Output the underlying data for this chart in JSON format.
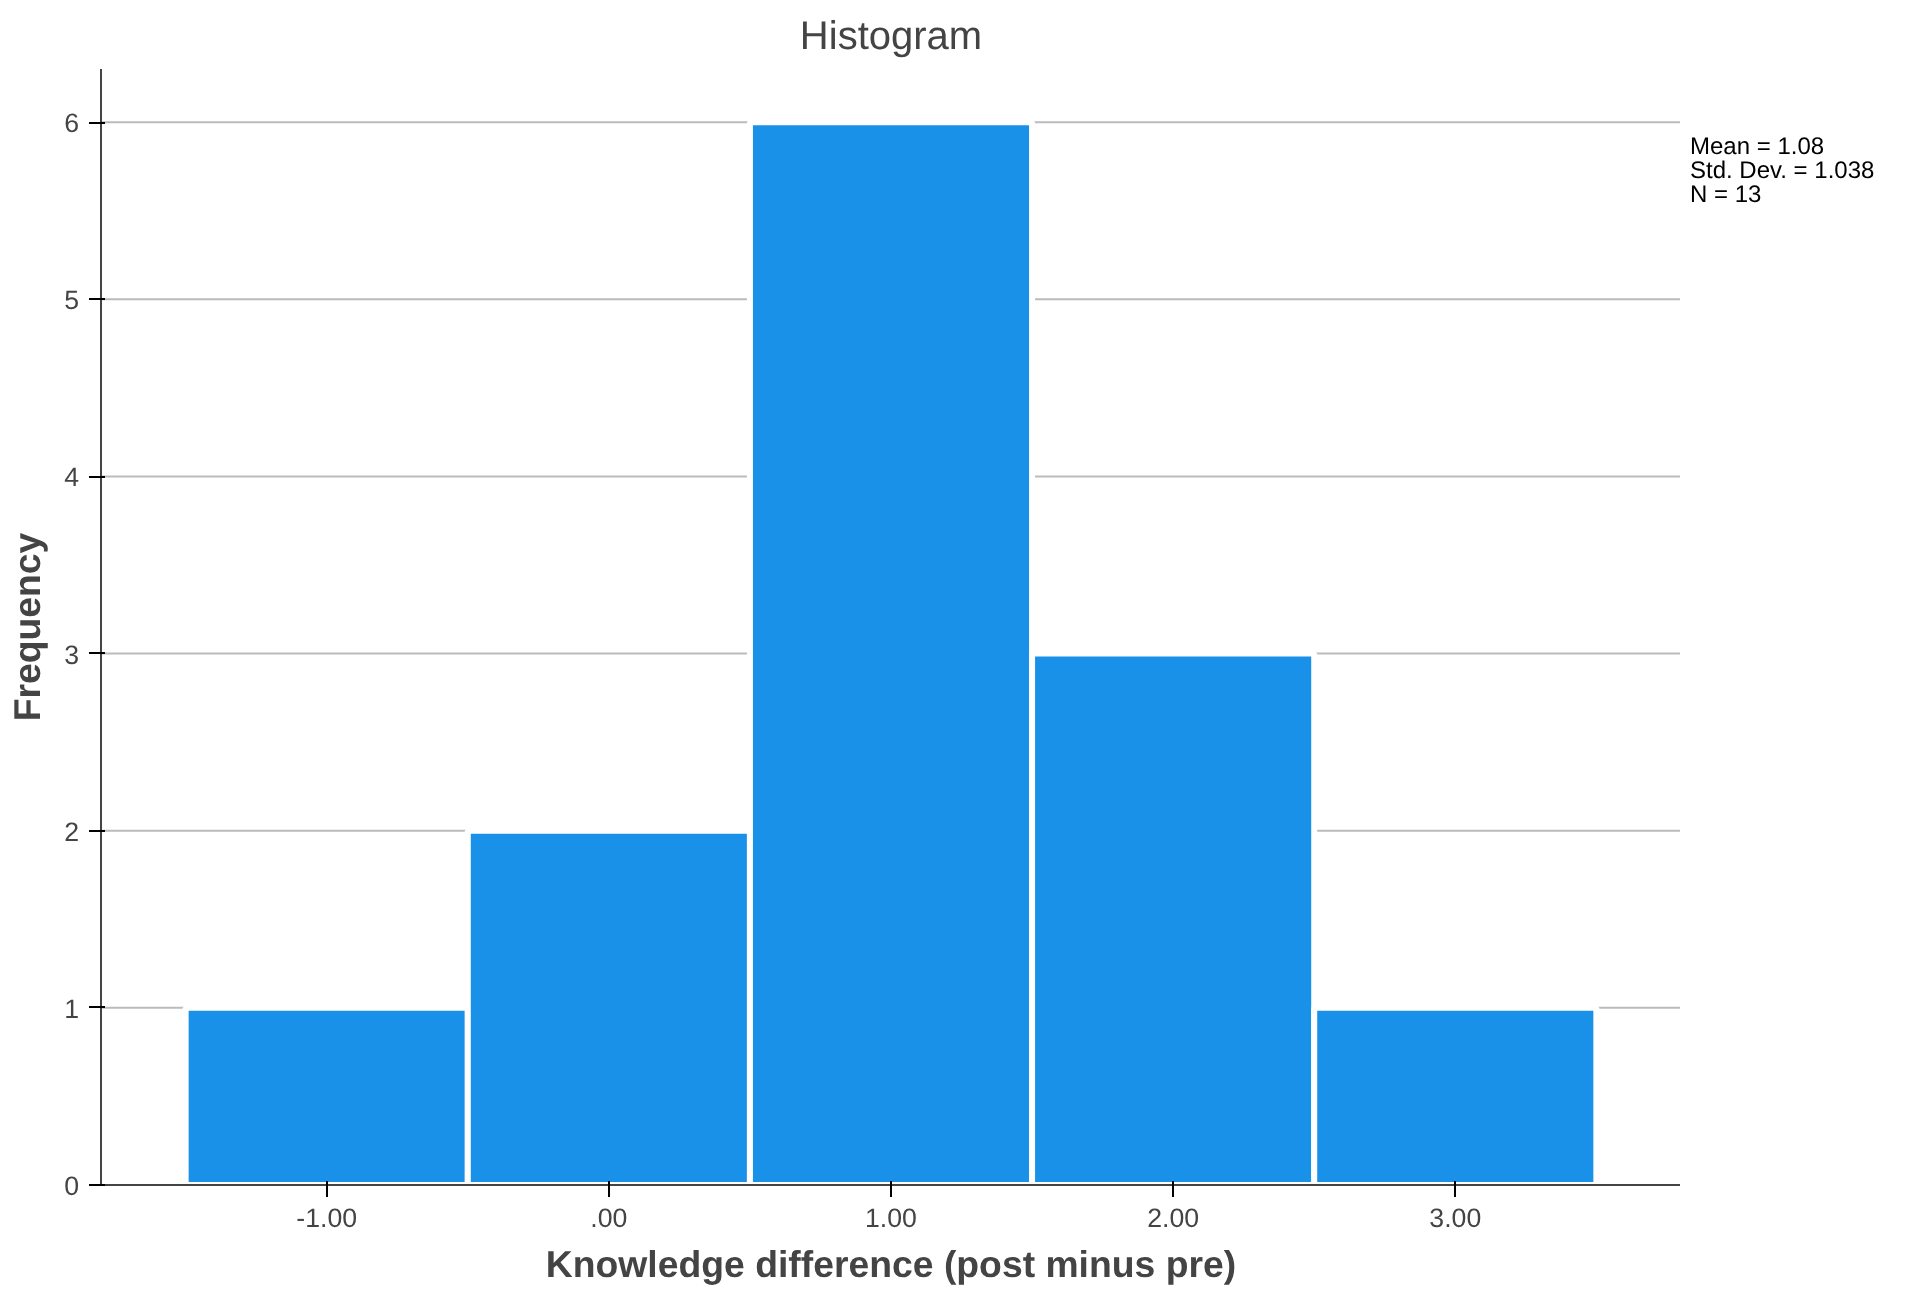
{
  "chart_data": {
    "type": "histogram",
    "title": "Histogram",
    "xlabel": "Knowledge difference (post minus pre)",
    "ylabel": "Frequency",
    "bins": [
      -1.5,
      -0.5,
      0.5,
      1.5,
      2.5,
      3.5
    ],
    "values": [
      1,
      2,
      6,
      3,
      1
    ],
    "color": "#1a91e8",
    "xlim": [
      -1.8,
      3.8
    ],
    "xticks": [
      {
        "value": -1,
        "label": "-1.00"
      },
      {
        "value": 0,
        "label": ".00"
      },
      {
        "value": 1,
        "label": "1.00"
      },
      {
        "value": 2,
        "label": "2.00"
      },
      {
        "value": 3,
        "label": "3.00"
      }
    ],
    "ylim": [
      0,
      6.3
    ],
    "yticks": [
      0,
      1,
      2,
      3,
      4,
      5,
      6
    ],
    "grid": "y",
    "annotations": [
      "Mean = 1.08",
      "Std. Dev. = 1.038",
      "N = 13"
    ]
  }
}
